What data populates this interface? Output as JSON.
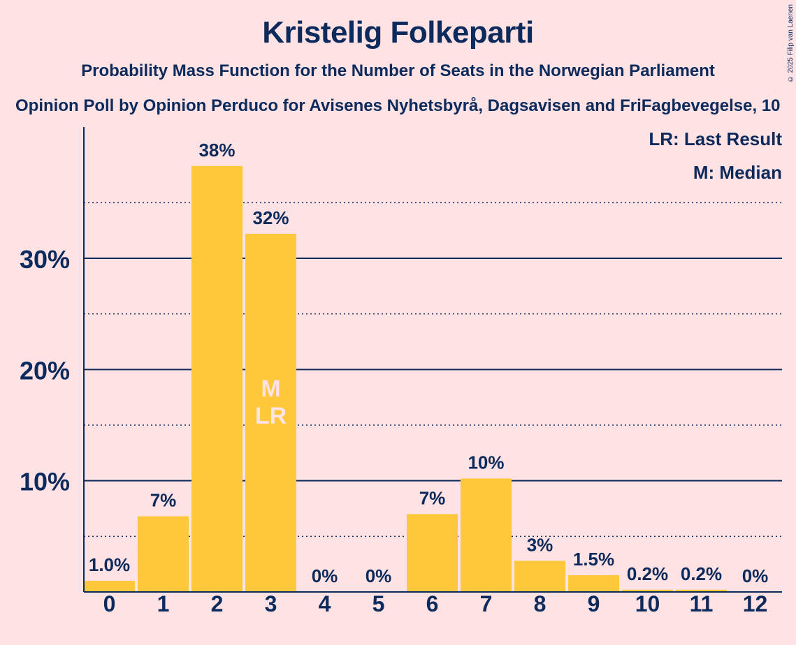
{
  "title": "Kristelig Folkeparti",
  "subtitle": "Probability Mass Function for the Number of Seats in the Norwegian Parliament",
  "subtitle2": "Opinion Poll by Opinion Perduco for Avisenes Nyhetsbyrå, Dagsavisen and FriFagbevegelse, 10",
  "copyright": "© 2025 Filip van Laenen",
  "legend": {
    "last_result": "LR: Last Result",
    "median": "M: Median"
  },
  "colors": {
    "bar": "#ffc83a",
    "axis": "#0c2a5c",
    "background": "#ffe2e3",
    "marker_text": "#ffe2e3"
  },
  "chart_data": {
    "type": "bar",
    "categories": [
      "0",
      "1",
      "2",
      "3",
      "4",
      "5",
      "6",
      "7",
      "8",
      "9",
      "10",
      "11",
      "12"
    ],
    "values": [
      1.0,
      6.8,
      38.3,
      32.2,
      0,
      0,
      7.0,
      10.2,
      2.8,
      1.5,
      0.2,
      0.2,
      0
    ],
    "labels": [
      "1.0%",
      "7%",
      "38%",
      "32%",
      "0%",
      "0%",
      "7%",
      "10%",
      "3%",
      "1.5%",
      "0.2%",
      "0.2%",
      "0%"
    ],
    "yticks": [
      10,
      20,
      30
    ],
    "ytick_labels": [
      "10%",
      "20%",
      "30%"
    ],
    "minor_gridlines": [
      5,
      15,
      25,
      35
    ],
    "ylim": [
      0,
      41.8
    ],
    "median_index": 3,
    "last_result_index": 3,
    "median_label": "M",
    "last_result_label": "LR",
    "grid": true,
    "legend_position": "top-right"
  }
}
